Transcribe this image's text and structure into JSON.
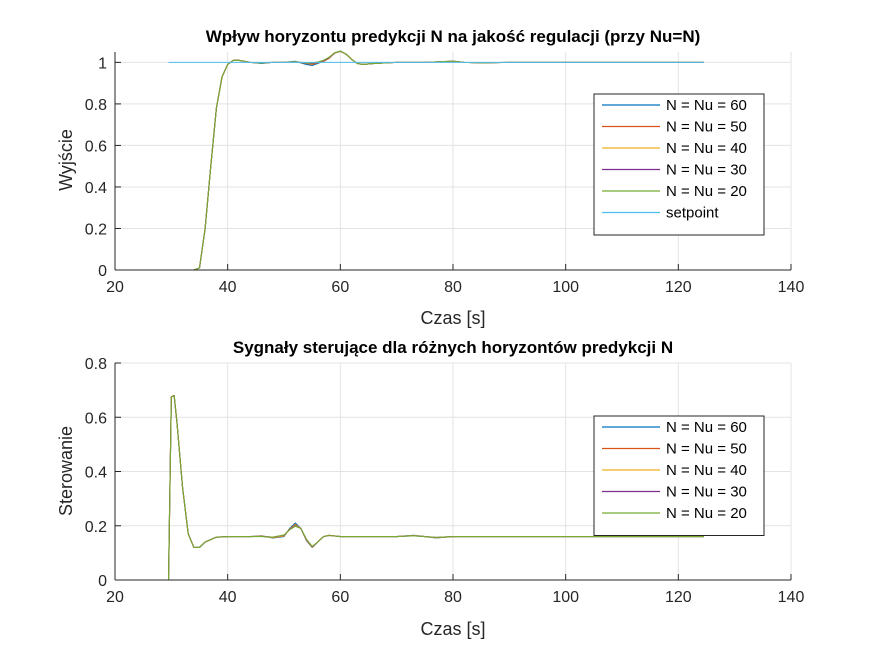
{
  "chart_data": [
    {
      "type": "line",
      "title": "Wpływ horyzontu predykcji N na jakość regulacji (przy Nu=N)",
      "xlabel": "Czas [s]",
      "ylabel": "Wyjście",
      "xlim": [
        20,
        140
      ],
      "ylim": [
        0,
        1.05
      ],
      "xticks": [
        "20",
        "40",
        "60",
        "80",
        "100",
        "120",
        "140"
      ],
      "yticks": [
        "0",
        "0.2",
        "0.4",
        "0.6",
        "0.8",
        "1"
      ],
      "xtick_values": [
        20,
        40,
        60,
        80,
        100,
        120,
        140
      ],
      "ytick_values": [
        0,
        0.2,
        0.4,
        0.6,
        0.8,
        1
      ],
      "grid": true,
      "legend_position": "right",
      "series": [
        {
          "name": "N = Nu = 60",
          "color": "#0072BD",
          "x": [
            29.5,
            34,
            35,
            36,
            37,
            38,
            39,
            40,
            41,
            42,
            44,
            46,
            48,
            50,
            52,
            54,
            55,
            56,
            57,
            58,
            59,
            60,
            61,
            62,
            63,
            64,
            66,
            70,
            75,
            80,
            82,
            85,
            90,
            100,
            110,
            124.5
          ],
          "y": [
            0,
            0,
            0.01,
            0.2,
            0.5,
            0.78,
            0.93,
            0.99,
            1.01,
            1.01,
            1.0,
            0.995,
            1.0,
            1.0,
            1.005,
            0.99,
            0.985,
            0.995,
            1.005,
            1.02,
            1.045,
            1.055,
            1.04,
            1.015,
            0.995,
            0.99,
            0.995,
            1.0,
            1.0,
            1.005,
            1.0,
            0.998,
            1.0,
            1.0,
            1.0,
            1.0
          ]
        },
        {
          "name": "N = Nu = 50",
          "color": "#D95319",
          "x": [
            29.5,
            34,
            35,
            36,
            37,
            38,
            39,
            40,
            41,
            42,
            44,
            46,
            48,
            50,
            52,
            54,
            55,
            56,
            57,
            58,
            59,
            60,
            61,
            62,
            63,
            64,
            66,
            70,
            75,
            80,
            82,
            85,
            90,
            100,
            110,
            124.5
          ],
          "y": [
            0,
            0,
            0.01,
            0.2,
            0.5,
            0.78,
            0.93,
            0.99,
            1.01,
            1.01,
            1.0,
            0.997,
            1.0,
            1.0,
            1.003,
            0.995,
            0.99,
            0.998,
            1.005,
            1.02,
            1.045,
            1.053,
            1.04,
            1.015,
            0.995,
            0.99,
            0.995,
            1.0,
            1.0,
            1.005,
            1.0,
            0.998,
            1.0,
            1.0,
            1.0,
            1.0
          ]
        },
        {
          "name": "N = Nu = 40",
          "color": "#EDB120",
          "x": [
            29.5,
            34,
            35,
            36,
            37,
            38,
            39,
            40,
            41,
            42,
            44,
            46,
            48,
            50,
            52,
            54,
            55,
            56,
            57,
            58,
            59,
            60,
            61,
            62,
            63,
            64,
            66,
            70,
            75,
            80,
            82,
            85,
            90,
            100,
            110,
            124.5
          ],
          "y": [
            0,
            0,
            0.01,
            0.2,
            0.5,
            0.78,
            0.93,
            0.99,
            1.01,
            1.01,
            1.0,
            0.997,
            1.0,
            1.0,
            1.003,
            0.996,
            0.993,
            1.0,
            1.007,
            1.022,
            1.045,
            1.053,
            1.04,
            1.015,
            0.995,
            0.99,
            0.995,
            1.0,
            1.0,
            1.006,
            1.0,
            0.998,
            1.0,
            1.0,
            1.0,
            1.0
          ]
        },
        {
          "name": "N = Nu = 30",
          "color": "#7E2F8E",
          "x": [
            29.5,
            34,
            35,
            36,
            37,
            38,
            39,
            40,
            41,
            42,
            44,
            46,
            48,
            50,
            52,
            54,
            55,
            56,
            57,
            58,
            59,
            60,
            61,
            62,
            63,
            64,
            66,
            70,
            75,
            80,
            82,
            85,
            90,
            100,
            110,
            124.5
          ],
          "y": [
            0,
            0,
            0.01,
            0.2,
            0.5,
            0.78,
            0.93,
            0.99,
            1.01,
            1.01,
            1.0,
            0.997,
            1.0,
            1.0,
            1.002,
            0.997,
            0.995,
            1.0,
            1.008,
            1.023,
            1.046,
            1.054,
            1.04,
            1.015,
            0.995,
            0.99,
            0.995,
            1.0,
            1.0,
            1.006,
            1.0,
            0.998,
            1.0,
            1.0,
            1.0,
            1.0
          ]
        },
        {
          "name": "N = Nu = 20",
          "color": "#77AC30",
          "x": [
            29.5,
            34,
            35,
            36,
            37,
            38,
            39,
            40,
            41,
            42,
            44,
            46,
            48,
            50,
            52,
            54,
            55,
            56,
            57,
            58,
            59,
            60,
            61,
            62,
            63,
            64,
            66,
            70,
            75,
            80,
            82,
            85,
            90,
            100,
            110,
            124.5
          ],
          "y": [
            0,
            0,
            0.01,
            0.2,
            0.5,
            0.78,
            0.93,
            0.99,
            1.01,
            1.01,
            1.0,
            0.997,
            1.0,
            1.0,
            1.002,
            0.998,
            0.997,
            1.002,
            1.01,
            1.025,
            1.047,
            1.054,
            1.04,
            1.015,
            0.995,
            0.99,
            0.995,
            1.0,
            1.0,
            1.006,
            1.0,
            0.998,
            1.0,
            1.0,
            1.0,
            1.0
          ]
        },
        {
          "name": "setpoint",
          "color": "#4DBEEE",
          "x": [
            29.5,
            124.5
          ],
          "y": [
            1,
            1
          ]
        }
      ]
    },
    {
      "type": "line",
      "title": "Sygnały sterujące dla różnych horyzontów predykcji N",
      "xlabel": "Czas [s]",
      "ylabel": "Sterowanie",
      "xlim": [
        20,
        140
      ],
      "ylim": [
        0,
        0.8
      ],
      "xticks": [
        "20",
        "40",
        "60",
        "80",
        "100",
        "120",
        "140"
      ],
      "yticks": [
        "0",
        "0.2",
        "0.4",
        "0.6",
        "0.8"
      ],
      "xtick_values": [
        20,
        40,
        60,
        80,
        100,
        120,
        140
      ],
      "ytick_values": [
        0,
        0.2,
        0.4,
        0.6,
        0.8
      ],
      "grid": true,
      "legend_position": "right",
      "series": [
        {
          "name": "N = Nu = 60",
          "color": "#0072BD",
          "x": [
            29.5,
            30,
            30.5,
            31,
            32,
            33,
            34,
            35,
            36,
            38,
            40,
            44,
            46,
            48,
            50,
            51,
            52,
            53,
            54,
            55,
            56,
            57,
            58,
            60,
            65,
            70,
            73,
            75,
            77,
            80,
            85,
            90,
            100,
            110,
            124.5
          ],
          "y": [
            0,
            0.675,
            0.68,
            0.58,
            0.34,
            0.17,
            0.12,
            0.12,
            0.14,
            0.158,
            0.16,
            0.16,
            0.163,
            0.155,
            0.16,
            0.19,
            0.21,
            0.19,
            0.145,
            0.12,
            0.14,
            0.16,
            0.165,
            0.16,
            0.16,
            0.16,
            0.165,
            0.16,
            0.155,
            0.16,
            0.16,
            0.16,
            0.16,
            0.16,
            0.16
          ]
        },
        {
          "name": "N = Nu = 50",
          "color": "#D95319",
          "x": [
            29.5,
            30,
            30.5,
            31,
            32,
            33,
            34,
            35,
            36,
            38,
            40,
            44,
            46,
            48,
            50,
            51,
            52,
            53,
            54,
            55,
            56,
            57,
            58,
            60,
            65,
            70,
            73,
            75,
            77,
            80,
            85,
            90,
            100,
            110,
            124.5
          ],
          "y": [
            0,
            0.675,
            0.68,
            0.58,
            0.34,
            0.17,
            0.12,
            0.12,
            0.14,
            0.158,
            0.16,
            0.16,
            0.162,
            0.156,
            0.162,
            0.188,
            0.205,
            0.19,
            0.146,
            0.121,
            0.14,
            0.16,
            0.165,
            0.16,
            0.16,
            0.16,
            0.164,
            0.16,
            0.156,
            0.16,
            0.16,
            0.16,
            0.16,
            0.16,
            0.16
          ]
        },
        {
          "name": "N = Nu = 40",
          "color": "#EDB120",
          "x": [
            29.5,
            30,
            30.5,
            31,
            32,
            33,
            34,
            35,
            36,
            38,
            40,
            44,
            46,
            48,
            50,
            51,
            52,
            53,
            54,
            55,
            56,
            57,
            58,
            60,
            65,
            70,
            73,
            75,
            77,
            80,
            85,
            90,
            100,
            110,
            124.5
          ],
          "y": [
            0,
            0.675,
            0.68,
            0.58,
            0.34,
            0.17,
            0.12,
            0.12,
            0.14,
            0.158,
            0.16,
            0.16,
            0.162,
            0.157,
            0.163,
            0.187,
            0.203,
            0.19,
            0.147,
            0.122,
            0.14,
            0.16,
            0.165,
            0.16,
            0.16,
            0.16,
            0.164,
            0.16,
            0.156,
            0.16,
            0.16,
            0.16,
            0.16,
            0.16,
            0.16
          ]
        },
        {
          "name": "N = Nu = 30",
          "color": "#7E2F8E",
          "x": [
            29.5,
            30,
            30.5,
            31,
            32,
            33,
            34,
            35,
            36,
            38,
            40,
            44,
            46,
            48,
            50,
            51,
            52,
            53,
            54,
            55,
            56,
            57,
            58,
            60,
            65,
            70,
            73,
            75,
            77,
            80,
            85,
            90,
            100,
            110,
            124.5
          ],
          "y": [
            0,
            0.675,
            0.68,
            0.58,
            0.34,
            0.17,
            0.12,
            0.12,
            0.14,
            0.158,
            0.16,
            0.16,
            0.161,
            0.158,
            0.165,
            0.186,
            0.2,
            0.19,
            0.148,
            0.123,
            0.14,
            0.16,
            0.164,
            0.16,
            0.16,
            0.16,
            0.163,
            0.16,
            0.157,
            0.16,
            0.16,
            0.16,
            0.16,
            0.16,
            0.16
          ]
        },
        {
          "name": "N = Nu = 20",
          "color": "#77AC30",
          "x": [
            29.5,
            30,
            30.5,
            31,
            32,
            33,
            34,
            35,
            36,
            38,
            40,
            44,
            46,
            48,
            50,
            51,
            52,
            53,
            54,
            55,
            56,
            57,
            58,
            60,
            65,
            70,
            73,
            75,
            77,
            80,
            85,
            90,
            100,
            110,
            124.5
          ],
          "y": [
            0,
            0.675,
            0.68,
            0.58,
            0.34,
            0.17,
            0.12,
            0.12,
            0.14,
            0.158,
            0.16,
            0.16,
            0.16,
            0.158,
            0.166,
            0.185,
            0.198,
            0.19,
            0.15,
            0.124,
            0.14,
            0.16,
            0.164,
            0.16,
            0.16,
            0.16,
            0.163,
            0.16,
            0.157,
            0.16,
            0.16,
            0.16,
            0.16,
            0.16,
            0.16
          ]
        }
      ]
    }
  ]
}
